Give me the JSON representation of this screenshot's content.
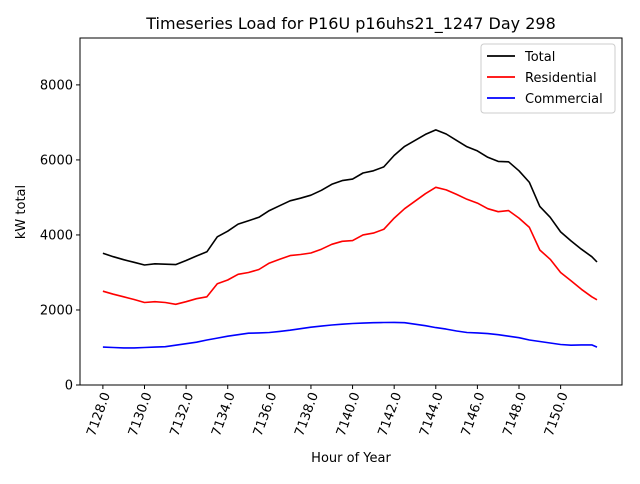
{
  "chart_data": {
    "type": "line",
    "title": "Timeseries Load for P16U p16uhs21_1247  Day 298",
    "xlabel": "Hour of Year",
    "ylabel": "kW total",
    "xlim": [
      7126.9,
      7152.95
    ],
    "ylim": [
      0,
      9250
    ],
    "grid": false,
    "legend_position": "top-right",
    "x_ticks": [
      7128,
      7130,
      7132,
      7134,
      7136,
      7138,
      7140,
      7142,
      7144,
      7146,
      7148,
      7150
    ],
    "x_tick_labels": [
      "7128.0",
      "7130.0",
      "7132.0",
      "7134.0",
      "7136.0",
      "7138.0",
      "7140.0",
      "7142.0",
      "7144.0",
      "7146.0",
      "7148.0",
      "7150.0"
    ],
    "y_ticks": [
      0,
      2000,
      4000,
      6000,
      8000
    ],
    "y_tick_labels": [
      "0",
      "2000",
      "4000",
      "6000",
      "8000"
    ],
    "x": [
      7128,
      7128.5,
      7129,
      7129.5,
      7130,
      7130.5,
      7131,
      7131.5,
      7132,
      7132.5,
      7133,
      7133.5,
      7134,
      7134.5,
      7135,
      7135.5,
      7136,
      7136.5,
      7137,
      7137.5,
      7138,
      7138.5,
      7139,
      7139.5,
      7140,
      7140.5,
      7141,
      7141.5,
      7142,
      7142.5,
      7143,
      7143.5,
      7144,
      7144.5,
      7145,
      7145.5,
      7146,
      7146.5,
      7147,
      7147.5,
      7148,
      7148.5,
      7149,
      7149.5,
      7150,
      7150.5,
      7151,
      7151.5,
      7151.75
    ],
    "series": [
      {
        "name": "Total",
        "color": "#000000",
        "values": [
          3510,
          3420,
          3340,
          3270,
          3200,
          3230,
          3220,
          3210,
          3320,
          3440,
          3550,
          3950,
          4100,
          4290,
          4380,
          4470,
          4650,
          4780,
          4910,
          4980,
          5060,
          5190,
          5350,
          5450,
          5490,
          5650,
          5710,
          5815,
          6120,
          6360,
          6520,
          6680,
          6800,
          6690,
          6520,
          6350,
          6240,
          6070,
          5960,
          5950,
          5710,
          5400,
          4760,
          4470,
          4080,
          3840,
          3620,
          3420,
          3280
        ]
      },
      {
        "name": "Residential",
        "color": "#ff0000",
        "values": [
          2500,
          2420,
          2350,
          2280,
          2200,
          2220,
          2200,
          2150,
          2220,
          2300,
          2350,
          2700,
          2800,
          2950,
          3000,
          3080,
          3250,
          3350,
          3450,
          3480,
          3520,
          3620,
          3750,
          3830,
          3850,
          4000,
          4050,
          4150,
          4450,
          4700,
          4900,
          5100,
          5270,
          5200,
          5080,
          4950,
          4850,
          4700,
          4620,
          4650,
          4450,
          4200,
          3600,
          3350,
          3000,
          2780,
          2550,
          2350,
          2270
        ]
      },
      {
        "name": "Commercial",
        "color": "#0000ff",
        "values": [
          1010,
          1000,
          990,
          990,
          1000,
          1010,
          1020,
          1060,
          1100,
          1140,
          1200,
          1250,
          1300,
          1340,
          1380,
          1390,
          1400,
          1430,
          1460,
          1500,
          1540,
          1570,
          1600,
          1620,
          1640,
          1650,
          1660,
          1665,
          1670,
          1660,
          1620,
          1580,
          1530,
          1490,
          1440,
          1400,
          1390,
          1370,
          1340,
          1300,
          1260,
          1200,
          1160,
          1120,
          1080,
          1060,
          1070,
          1070,
          1010
        ]
      }
    ]
  }
}
